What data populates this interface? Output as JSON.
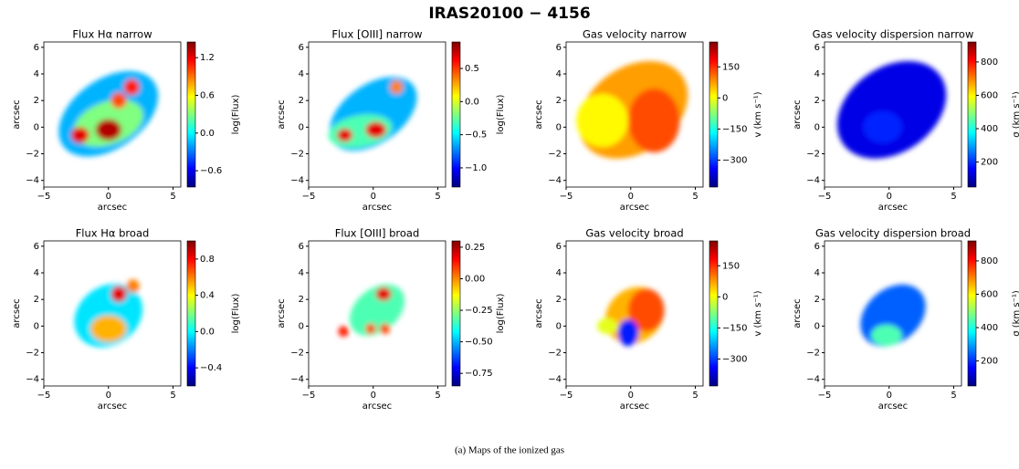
{
  "title": "IRAS20100 − 4156",
  "caption": "(a) Maps of the ionized gas",
  "chart_data": [
    {
      "type": "map",
      "title": "Flux Hα narrow",
      "xlabel": "arcsec",
      "ylabel": "arcsec",
      "xlim": [
        -5,
        5.6
      ],
      "ylim": [
        -4.5,
        6.4
      ],
      "xticks": [
        {
          "value": -5,
          "label": "−5"
        },
        0,
        5
      ],
      "yticks": [
        {
          "value": -4,
          "label": "−4"
        },
        {
          "value": -2,
          "label": "−2"
        },
        0,
        2,
        4,
        6
      ],
      "colorbar": {
        "label": "log(Flux)",
        "lim": [
          -0.86,
          1.45
        ],
        "ticks": [
          {
            "value": -0.6,
            "label": "−0.6"
          },
          {
            "value": 0,
            "label": "0.0"
          },
          0.6,
          1.2
        ]
      }
    },
    {
      "type": "map",
      "title": "Flux [OIII] narrow",
      "xlabel": "arcsec",
      "ylabel": "arcsec",
      "xlim": [
        -5,
        5.6
      ],
      "ylim": [
        -4.5,
        6.4
      ],
      "xticks": [
        {
          "value": -5,
          "label": "−5"
        },
        0,
        5
      ],
      "yticks": [
        {
          "value": -4,
          "label": "−4"
        },
        {
          "value": -2,
          "label": "−2"
        },
        0,
        2,
        4,
        6
      ],
      "colorbar": {
        "label": "log(Flux)",
        "lim": [
          -1.29,
          0.9
        ],
        "ticks": [
          {
            "value": -1,
            "label": "−1.0"
          },
          {
            "value": -0.5,
            "label": "−0.5"
          },
          {
            "value": 0,
            "label": "0.0"
          },
          0.5
        ]
      }
    },
    {
      "type": "map",
      "title": "Gas velocity narrow",
      "xlabel": "arcsec",
      "ylabel": "arcsec",
      "xlim": [
        -5,
        5.6
      ],
      "ylim": [
        -4.5,
        6.4
      ],
      "xticks": [
        {
          "value": -5,
          "label": "−5"
        },
        0,
        5
      ],
      "yticks": [
        {
          "value": -4,
          "label": "−4"
        },
        {
          "value": -2,
          "label": "−2"
        },
        0,
        2,
        4,
        6
      ],
      "colorbar": {
        "label": "v (km s⁻¹)",
        "lim": [
          -430,
          270
        ],
        "ticks": [
          {
            "value": -300,
            "label": "−300"
          },
          {
            "value": -150,
            "label": "−150"
          },
          0,
          150
        ]
      }
    },
    {
      "type": "map",
      "title": "Gas velocity dispersion narrow",
      "xlabel": "arcsec",
      "ylabel": "arcsec",
      "xlim": [
        -5,
        5.6
      ],
      "ylim": [
        -4.5,
        6.4
      ],
      "xticks": [
        {
          "value": -5,
          "label": "−5"
        },
        0,
        5
      ],
      "yticks": [
        {
          "value": -4,
          "label": "−4"
        },
        {
          "value": -2,
          "label": "−2"
        },
        0,
        2,
        4,
        6
      ],
      "colorbar": {
        "label": "σ (km s⁻¹)",
        "lim": [
          50,
          920
        ],
        "ticks": [
          200,
          400,
          600,
          800
        ]
      }
    },
    {
      "type": "map",
      "title": "Flux Hα broad",
      "xlabel": "arcsec",
      "ylabel": "arcsec",
      "xlim": [
        -5,
        5.6
      ],
      "ylim": [
        -4.5,
        6.4
      ],
      "xticks": [
        {
          "value": -5,
          "label": "−5"
        },
        0,
        5
      ],
      "yticks": [
        {
          "value": -4,
          "label": "−4"
        },
        {
          "value": -2,
          "label": "−2"
        },
        0,
        2,
        4,
        6
      ],
      "colorbar": {
        "label": "log(Flux)",
        "lim": [
          -0.6,
          1.0
        ],
        "ticks": [
          {
            "value": -0.4,
            "label": "−0.4"
          },
          {
            "value": 0,
            "label": "0.0"
          },
          0.4,
          0.8
        ]
      }
    },
    {
      "type": "map",
      "title": "Flux [OIII] broad",
      "xlabel": "arcsec",
      "ylabel": "arcsec",
      "xlim": [
        -5,
        5.6
      ],
      "ylim": [
        -4.5,
        6.4
      ],
      "xticks": [
        {
          "value": -5,
          "label": "−5"
        },
        0,
        5
      ],
      "yticks": [
        {
          "value": -4,
          "label": "−4"
        },
        {
          "value": -2,
          "label": "−2"
        },
        0,
        2,
        4,
        6
      ],
      "colorbar": {
        "label": "log(Flux)",
        "lim": [
          -0.85,
          0.3
        ],
        "ticks": [
          {
            "value": -0.75,
            "label": "−0.75"
          },
          {
            "value": -0.5,
            "label": "−0.50"
          },
          {
            "value": -0.25,
            "label": "−0.25"
          },
          {
            "value": 0,
            "label": "0.00"
          },
          0.25
        ]
      }
    },
    {
      "type": "map",
      "title": "Gas velocity broad",
      "xlabel": "arcsec",
      "ylabel": "arcsec",
      "xlim": [
        -5,
        5.6
      ],
      "ylim": [
        -4.5,
        6.4
      ],
      "xticks": [
        {
          "value": -5,
          "label": "−5"
        },
        0,
        5
      ],
      "yticks": [
        {
          "value": -4,
          "label": "−4"
        },
        {
          "value": -2,
          "label": "−2"
        },
        0,
        2,
        4,
        6
      ],
      "colorbar": {
        "label": "v (km s⁻¹)",
        "lim": [
          -430,
          270
        ],
        "ticks": [
          {
            "value": -300,
            "label": "−300"
          },
          {
            "value": -150,
            "label": "−150"
          },
          0,
          150
        ]
      }
    },
    {
      "type": "map",
      "title": "Gas velocity dispersion broad",
      "xlabel": "arcsec",
      "ylabel": "arcsec",
      "xlim": [
        -5,
        5.6
      ],
      "ylim": [
        -4.5,
        6.4
      ],
      "xticks": [
        {
          "value": -5,
          "label": "−5"
        },
        0,
        5
      ],
      "yticks": [
        {
          "value": -4,
          "label": "−4"
        },
        {
          "value": -2,
          "label": "−2"
        },
        0,
        2,
        4,
        6
      ],
      "colorbar": {
        "label": "σ (km s⁻¹)",
        "lim": [
          50,
          920
        ],
        "ticks": [
          200,
          400,
          600,
          800
        ]
      }
    }
  ]
}
